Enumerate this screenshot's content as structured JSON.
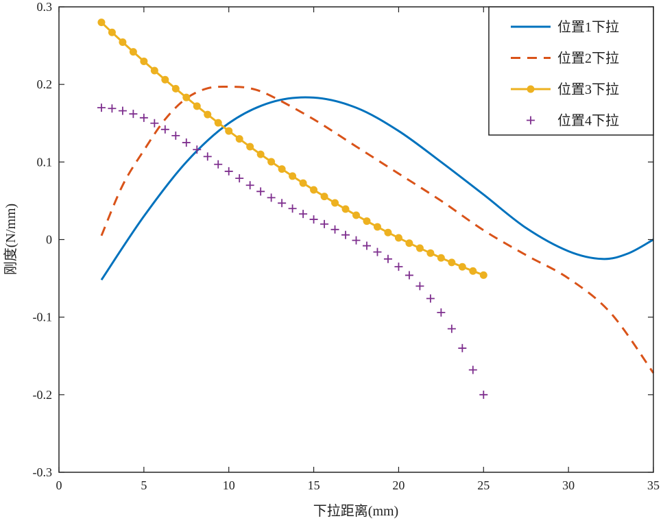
{
  "chart_data": {
    "type": "line",
    "title": "",
    "xlabel": "下拉距离(mm)",
    "ylabel": "刚度(N/mm)",
    "xlim": [
      0,
      35
    ],
    "ylim": [
      -0.3,
      0.3
    ],
    "xticks": [
      0,
      5,
      10,
      15,
      20,
      25,
      30,
      35
    ],
    "yticks": [
      -0.3,
      -0.2,
      -0.1,
      0,
      0.1,
      0.2,
      0.3
    ],
    "xtick_labels": [
      "0",
      "5",
      "10",
      "15",
      "20",
      "25",
      "30",
      "35"
    ],
    "ytick_labels": [
      "-0.3",
      "-0.2",
      "-0.1",
      "0",
      "0.1",
      "0.2",
      "0.3"
    ],
    "grid": false,
    "legend_position": "top-right",
    "series": [
      {
        "name": "位置1下拉",
        "style": "solid",
        "marker": "none",
        "color": "#0072BD",
        "x": [
          2.5,
          5,
          7.5,
          10,
          12.5,
          15,
          17.5,
          20,
          22.5,
          25,
          27.5,
          30,
          32,
          33.5,
          35
        ],
        "y": [
          -0.052,
          0.03,
          0.1,
          0.15,
          0.177,
          0.183,
          0.17,
          0.14,
          0.1,
          0.058,
          0.015,
          -0.015,
          -0.025,
          -0.018,
          0
        ]
      },
      {
        "name": "位置2下拉",
        "style": "dashed",
        "marker": "none",
        "color": "#D95319",
        "x": [
          2.5,
          3.75,
          5,
          6.25,
          7.5,
          8.75,
          10,
          11.25,
          12.5,
          15,
          17.5,
          20,
          22.5,
          25,
          27.5,
          30,
          32.5,
          35
        ],
        "y": [
          0.005,
          0.07,
          0.115,
          0.155,
          0.182,
          0.195,
          0.197,
          0.195,
          0.185,
          0.155,
          0.12,
          0.085,
          0.05,
          0.012,
          -0.02,
          -0.05,
          -0.095,
          -0.172
        ]
      },
      {
        "name": "位置3下拉",
        "style": "solid",
        "marker": "circle",
        "color": "#EDB120",
        "x": [
          2.5,
          3.125,
          3.75,
          4.375,
          5,
          5.625,
          6.25,
          6.875,
          7.5,
          8.125,
          8.75,
          9.375,
          10,
          10.625,
          11.25,
          11.875,
          12.5,
          13.125,
          13.75,
          14.375,
          15,
          15.625,
          16.25,
          16.875,
          17.5,
          18.125,
          18.75,
          19.375,
          20,
          20.625,
          21.25,
          21.875,
          22.5,
          23.125,
          23.75,
          24.375,
          25
        ],
        "y": [
          0.28,
          0.2671,
          0.2545,
          0.242,
          0.2298,
          0.2178,
          0.2061,
          0.1945,
          0.1832,
          0.172,
          0.1612,
          0.1505,
          0.14,
          0.1298,
          0.1197,
          0.1099,
          0.1003,
          0.0909,
          0.0818,
          0.0728,
          0.0641,
          0.0556,
          0.0473,
          0.0393,
          0.0314,
          0.0238,
          0.0164,
          0.0091,
          0.0022,
          -0.0046,
          -0.0111,
          -0.0174,
          -0.0236,
          -0.0295,
          -0.0351,
          -0.0405,
          -0.0458
        ]
      },
      {
        "name": "位置4下拉",
        "style": "none",
        "marker": "plus",
        "color": "#7E2F8E",
        "x": [
          2.5,
          3.125,
          3.75,
          4.375,
          5,
          5.625,
          6.25,
          6.875,
          7.5,
          8.125,
          8.75,
          9.375,
          10,
          10.625,
          11.25,
          11.875,
          12.5,
          13.125,
          13.75,
          14.375,
          15,
          15.625,
          16.25,
          16.875,
          17.5,
          18.125,
          18.75,
          19.375,
          20,
          20.625,
          21.25,
          21.875,
          22.5,
          23.125,
          23.75,
          24.375,
          25
        ],
        "y": [
          0.17,
          0.169,
          0.166,
          0.162,
          0.157,
          0.15,
          0.142,
          0.134,
          0.125,
          0.116,
          0.107,
          0.097,
          0.088,
          0.079,
          0.07,
          0.062,
          0.054,
          0.047,
          0.04,
          0.033,
          0.026,
          0.02,
          0.013,
          0.006,
          -0.001,
          -0.008,
          -0.016,
          -0.025,
          -0.035,
          -0.046,
          -0.06,
          -0.076,
          -0.094,
          -0.115,
          -0.14,
          -0.168,
          -0.2
        ]
      }
    ]
  }
}
